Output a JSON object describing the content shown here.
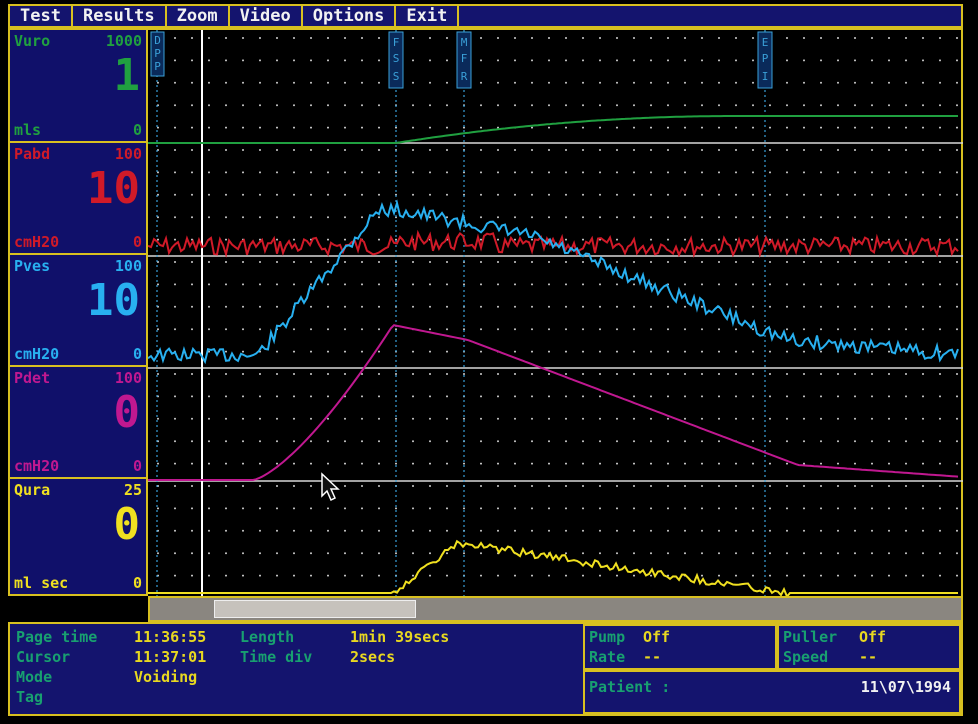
{
  "menu": [
    "Test",
    "Results",
    "Zoom",
    "Video",
    "Options",
    "Exit"
  ],
  "channels": [
    {
      "name": "Vuro",
      "max": "1000",
      "value": "1",
      "unit": "mls",
      "min": "0",
      "color": "#20a040"
    },
    {
      "name": "Pabd",
      "max": "100",
      "value": "10",
      "unit": "cmH20",
      "min": "0",
      "color": "#d01a28"
    },
    {
      "name": "Pves",
      "max": "100",
      "value": "10",
      "unit": "cmH20",
      "min": "0",
      "color": "#28b0f0"
    },
    {
      "name": "Pdet",
      "max": "100",
      "value": "0",
      "unit": "cmH20",
      "min": "0",
      "color": "#c01890"
    },
    {
      "name": "Qura",
      "max": "25",
      "value": "0",
      "unit": "ml sec",
      "min": "0",
      "color": "#f0e020"
    }
  ],
  "events": [
    {
      "label": "DPP"
    },
    {
      "label": "FSS"
    },
    {
      "label": "MFR"
    },
    {
      "label": "EPI"
    }
  ],
  "status": {
    "page_time_label": "Page time",
    "page_time": "11:36:55",
    "length_label": "Length",
    "length": "1min 39secs",
    "cursor_label": "Cursor",
    "cursor": "11:37:01",
    "timediv_label": "Time div",
    "timediv": "2secs",
    "mode_label": "Mode",
    "mode": "Voiding",
    "tag_label": "Tag",
    "pump_label": "Pump",
    "pump": "Off",
    "rate_label": "Rate",
    "rate": "--",
    "puller_label": "Puller",
    "puller": "Off",
    "speed_label": "Speed",
    "speed": "--",
    "patient_label": "Patient :",
    "date": "11\\07\\1994"
  },
  "colors": {
    "border": "#d8c020",
    "panel": "#10106a",
    "grid": "#d0d0d0",
    "event_line": "#3aa0d8",
    "cursor_line": "#ffffff"
  }
}
